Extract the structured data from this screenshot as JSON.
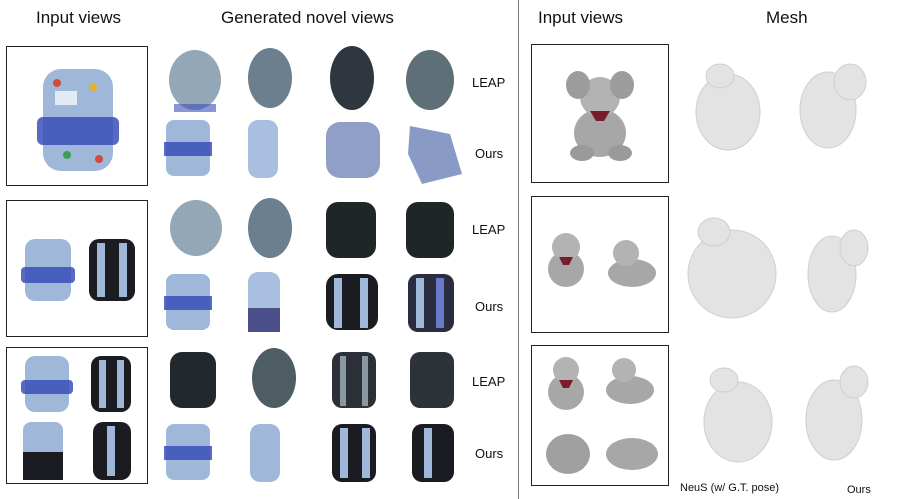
{
  "headers": {
    "input_views_left": "Input views",
    "generated_novel_views": "Generated novel views",
    "input_views_right": "Input views",
    "mesh": "Mesh"
  },
  "row_labels": {
    "r1_leap": "LEAP",
    "r1_ours": "Ours",
    "r2_leap": "LEAP",
    "r2_ours": "Ours",
    "r3_leap": "LEAP",
    "r3_ours": "Ours"
  },
  "mesh_captions": {
    "neus": "NeuS  (w/ G.T. pose)",
    "ours": "Ours"
  },
  "colors": {
    "backpack_body": "#9fb8da",
    "backpack_trim": "#3a4fb8",
    "backpack_black": "#1a1c22",
    "leap_blur": "#5f7a8e",
    "plush": "#a7a7a7",
    "bow": "#7a1d2a",
    "mesh": "#e3e3e3"
  }
}
